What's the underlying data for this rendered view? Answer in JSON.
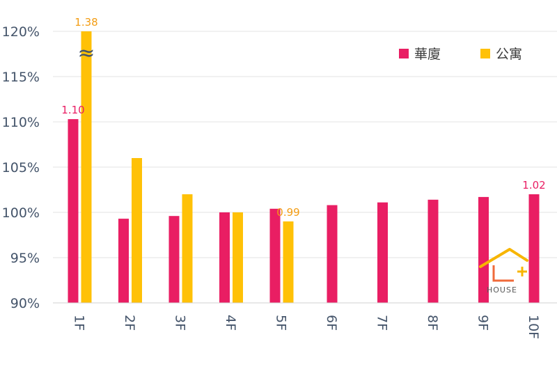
{
  "chart_data": {
    "type": "bar",
    "categories": [
      "1F",
      "2F",
      "3F",
      "4F",
      "5F",
      "6F",
      "7F",
      "8F",
      "9F",
      "10F"
    ],
    "series": [
      {
        "name": "華廈",
        "color": "#e91e63",
        "values": [
          1.103,
          0.993,
          0.996,
          1.0,
          1.004,
          1.008,
          1.011,
          1.014,
          1.017,
          1.02
        ]
      },
      {
        "name": "公寓",
        "color": "#ffc107",
        "values": [
          1.38,
          1.06,
          1.02,
          1.0,
          0.99,
          null,
          null,
          null,
          null,
          null
        ]
      }
    ],
    "ylim": [
      0.9,
      1.2
    ],
    "yticks": [
      "90%",
      "95%",
      "100%",
      "105%",
      "110%",
      "115%",
      "120%"
    ],
    "data_labels": [
      {
        "series": 0,
        "index": 0,
        "text": "1.10",
        "color": "#e91e63"
      },
      {
        "series": 1,
        "index": 0,
        "text": "1.38",
        "color": "#f39c12"
      },
      {
        "series": 1,
        "index": 4,
        "text": "0.99",
        "color": "#f39c12"
      },
      {
        "series": 0,
        "index": 9,
        "text": "1.02",
        "color": "#e91e63"
      }
    ],
    "axis_break": {
      "series": 1,
      "index": 0,
      "symbol": "≈"
    },
    "legend_position": "top-right",
    "grid": true
  },
  "logo": {
    "text": "HOUSE"
  }
}
